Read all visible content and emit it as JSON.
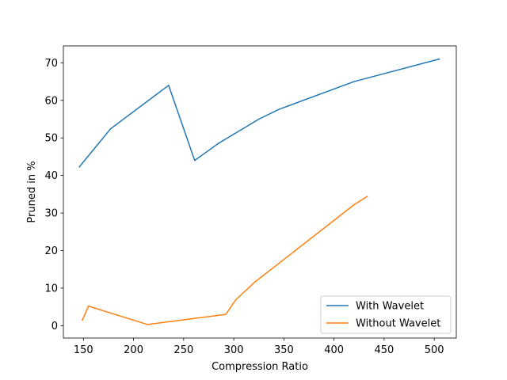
{
  "chart_data": {
    "type": "line",
    "title": "",
    "xlabel": "Compression Ratio",
    "ylabel": "Pruned in %",
    "xlim": [
      130,
      522
    ],
    "ylim": [
      -3.3,
      74.5
    ],
    "xticks": [
      150,
      200,
      250,
      300,
      350,
      400,
      450,
      500
    ],
    "yticks": [
      0,
      10,
      20,
      30,
      40,
      50,
      60,
      70
    ],
    "grid": false,
    "legend_position": "lower right",
    "series": [
      {
        "name": "With Wavelet",
        "color": "#1f77b4",
        "x": [
          146,
          177,
          235,
          261,
          285,
          300,
          325,
          345,
          420,
          505
        ],
        "y": [
          42.3,
          52.4,
          64.0,
          44.0,
          48.6,
          51.0,
          55.0,
          57.6,
          65.0,
          71.0
        ]
      },
      {
        "name": "Without Wavelet",
        "color": "#ff7f0e",
        "x": [
          149,
          155,
          214,
          292,
          302,
          321,
          420,
          433
        ],
        "y": [
          1.5,
          5.2,
          0.3,
          3.0,
          6.9,
          11.6,
          32.2,
          34.4
        ]
      }
    ]
  }
}
